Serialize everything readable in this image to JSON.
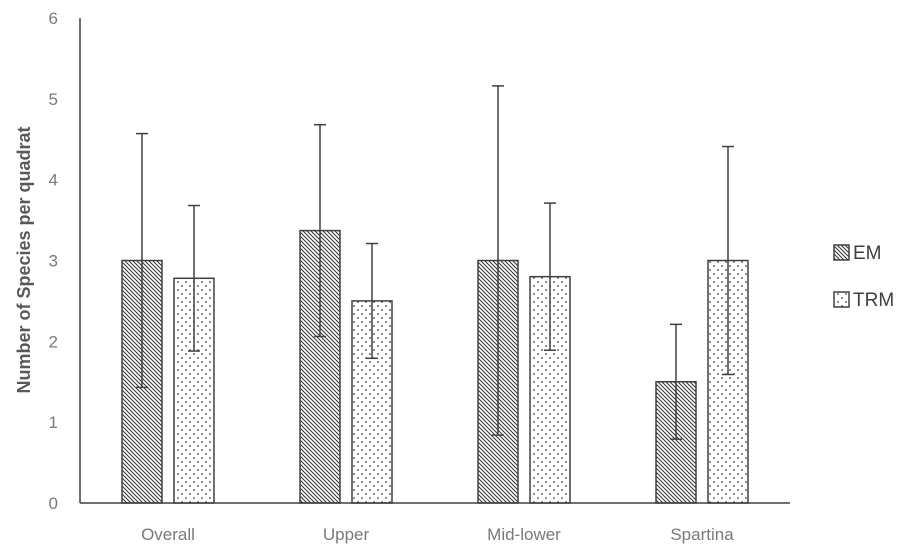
{
  "chart_data": {
    "type": "bar",
    "title": "",
    "xlabel": "",
    "ylabel": "Number of Species per quadrat",
    "ylim": [
      0,
      6
    ],
    "yticks": [
      0,
      1,
      2,
      3,
      4,
      5,
      6
    ],
    "categories": [
      "Overall",
      "Upper",
      "Mid-lower",
      "Spartina"
    ],
    "series": [
      {
        "name": "EM",
        "pattern": "diagonal-hatch",
        "values": [
          3.0,
          3.37,
          3.0,
          1.5
        ],
        "error": [
          1.57,
          1.31,
          2.16,
          0.71
        ]
      },
      {
        "name": "TRM",
        "pattern": "dots",
        "values": [
          2.78,
          2.5,
          2.8,
          3.0
        ],
        "error": [
          0.9,
          0.71,
          0.91,
          1.41
        ]
      }
    ],
    "legend_position": "right",
    "grid": false,
    "colors": {
      "axis": "#404040",
      "bar_edge": "#404040",
      "text": "#7a7a7a"
    }
  }
}
